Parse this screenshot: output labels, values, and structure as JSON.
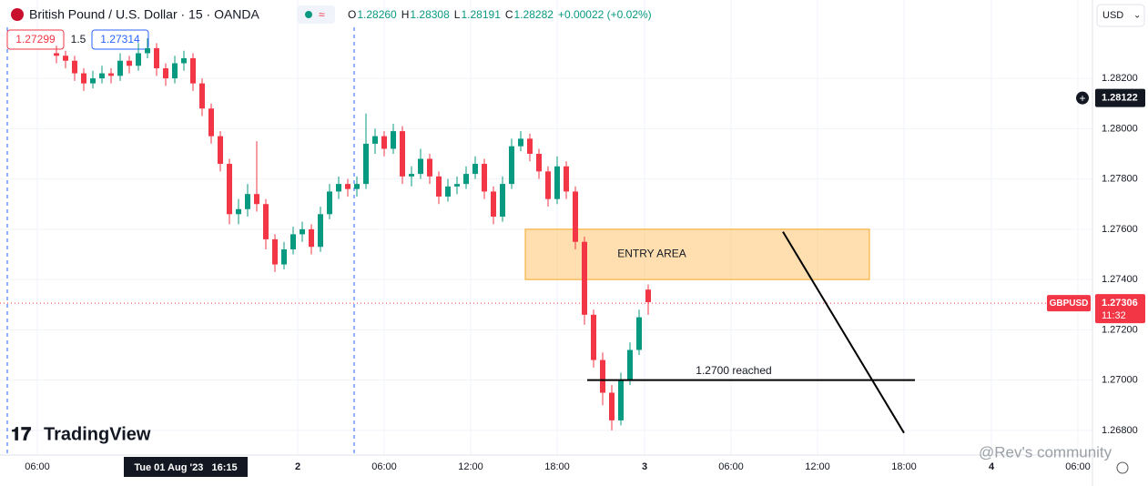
{
  "chart_data": {
    "type": "candlestick",
    "title": "British Pound / U.S. Dollar · 15 · OANDA",
    "legend": [
      {
        "label": "O",
        "value": "1.28260"
      },
      {
        "label": "H",
        "value": "1.28308"
      },
      {
        "label": "L",
        "value": "1.28191"
      },
      {
        "label": "C",
        "value": "1.28282"
      }
    ],
    "change": "+0.00022 (+0.02%)",
    "bid": "1.27299",
    "spread": "1.5",
    "ask": "1.27314",
    "currency": "USD",
    "symbol": "GBPUSD",
    "last_price": {
      "value": 1.27306,
      "label": "1.27306"
    },
    "countdown": "11:32",
    "crosshair_price": {
      "value": 1.28122,
      "label": "1.28122"
    },
    "crosshair_time": "Tue 01 Aug '23   16:15",
    "up_color": "#089981",
    "down_color": "#f23645",
    "ylim": [
      1.26702,
      1.28403
    ],
    "yticks": [
      {
        "value": 1.282,
        "label": "1.28200"
      },
      {
        "value": 1.28,
        "label": "1.28000"
      },
      {
        "value": 1.278,
        "label": "1.27800"
      },
      {
        "value": 1.276,
        "label": "1.27600"
      },
      {
        "value": 1.274,
        "label": "1.27400"
      },
      {
        "value": 1.272,
        "label": "1.27200"
      },
      {
        "value": 1.27,
        "label": "1.27000"
      },
      {
        "value": 1.268,
        "label": "1.26800"
      }
    ],
    "xlabels": [
      "06:00",
      "2",
      "06:00",
      "12:00",
      "18:00",
      "3",
      "06:00",
      "12:00",
      "18:00",
      "4",
      "06:00"
    ],
    "grid": true,
    "candles": [
      [
        1.283,
        1.2833,
        1.2826,
        1.2829
      ],
      [
        1.2829,
        1.2831,
        1.2824,
        1.2827
      ],
      [
        1.2827,
        1.2829,
        1.2819,
        1.2822
      ],
      [
        1.2822,
        1.2824,
        1.2815,
        1.2818
      ],
      [
        1.2818,
        1.2823,
        1.2816,
        1.282
      ],
      [
        1.282,
        1.2825,
        1.2818,
        1.2822
      ],
      [
        1.2822,
        1.2824,
        1.2818,
        1.2821
      ],
      [
        1.2821,
        1.283,
        1.2819,
        1.2827
      ],
      [
        1.2827,
        1.2829,
        1.2822,
        1.2825
      ],
      [
        1.2825,
        1.2834,
        1.2823,
        1.283
      ],
      [
        1.283,
        1.2836,
        1.2828,
        1.2832
      ],
      [
        1.2832,
        1.2834,
        1.2821,
        1.2824
      ],
      [
        1.2824,
        1.2826,
        1.2817,
        1.282
      ],
      [
        1.282,
        1.2829,
        1.2818,
        1.2826
      ],
      [
        1.2826,
        1.2831,
        1.2823,
        1.2828
      ],
      [
        1.2828,
        1.283,
        1.2815,
        1.2818
      ],
      [
        1.2818,
        1.282,
        1.2805,
        1.2808
      ],
      [
        1.2808,
        1.281,
        1.2794,
        1.2797
      ],
      [
        1.2797,
        1.2799,
        1.2783,
        1.2786
      ],
      [
        1.2786,
        1.2788,
        1.2762,
        1.2766
      ],
      [
        1.2766,
        1.2772,
        1.2762,
        1.2768
      ],
      [
        1.2768,
        1.2778,
        1.2765,
        1.2774
      ],
      [
        1.2774,
        1.2795,
        1.2767,
        1.277
      ],
      [
        1.277,
        1.2772,
        1.2752,
        1.2756
      ],
      [
        1.2756,
        1.2758,
        1.2743,
        1.2746
      ],
      [
        1.2746,
        1.2755,
        1.2744,
        1.2752
      ],
      [
        1.2752,
        1.2761,
        1.275,
        1.2758
      ],
      [
        1.2758,
        1.2763,
        1.2755,
        1.276
      ],
      [
        1.276,
        1.2762,
        1.275,
        1.2753
      ],
      [
        1.2753,
        1.2769,
        1.2751,
        1.2766
      ],
      [
        1.2766,
        1.2778,
        1.2764,
        1.2775
      ],
      [
        1.2775,
        1.2781,
        1.2772,
        1.2778
      ],
      [
        1.2778,
        1.278,
        1.2773,
        1.2776
      ],
      [
        1.2776,
        1.2781,
        1.2773,
        1.2778
      ],
      [
        1.2778,
        1.2806,
        1.2776,
        1.2794
      ],
      [
        1.2794,
        1.28,
        1.279,
        1.2797
      ],
      [
        1.2797,
        1.2799,
        1.2789,
        1.2792
      ],
      [
        1.2792,
        1.2802,
        1.279,
        1.2799
      ],
      [
        1.2799,
        1.2801,
        1.2778,
        1.2781
      ],
      [
        1.2781,
        1.2785,
        1.2777,
        1.2782
      ],
      [
        1.2782,
        1.2792,
        1.278,
        1.2788
      ],
      [
        1.2788,
        1.279,
        1.2778,
        1.2781
      ],
      [
        1.2781,
        1.2783,
        1.277,
        1.2773
      ],
      [
        1.2773,
        1.278,
        1.2771,
        1.2777
      ],
      [
        1.2777,
        1.2781,
        1.2774,
        1.2778
      ],
      [
        1.2778,
        1.2785,
        1.2776,
        1.2782
      ],
      [
        1.2782,
        1.2789,
        1.278,
        1.2786
      ],
      [
        1.2786,
        1.2788,
        1.2772,
        1.2775
      ],
      [
        1.2775,
        1.2777,
        1.2762,
        1.2765
      ],
      [
        1.2765,
        1.2781,
        1.2763,
        1.2778
      ],
      [
        1.2778,
        1.2796,
        1.2776,
        1.2793
      ],
      [
        1.2793,
        1.2799,
        1.2791,
        1.2796
      ],
      [
        1.2796,
        1.2798,
        1.2787,
        1.279
      ],
      [
        1.279,
        1.2792,
        1.278,
        1.2783
      ],
      [
        1.2783,
        1.2785,
        1.2769,
        1.2772
      ],
      [
        1.2772,
        1.2789,
        1.277,
        1.2785
      ],
      [
        1.2785,
        1.2787,
        1.2772,
        1.2775
      ],
      [
        1.2775,
        1.2777,
        1.2752,
        1.2755
      ],
      [
        1.2755,
        1.2757,
        1.2722,
        1.2726
      ],
      [
        1.2726,
        1.2728,
        1.2705,
        1.2708
      ],
      [
        1.2708,
        1.2711,
        1.269,
        1.2695
      ],
      [
        1.2695,
        1.2698,
        1.268,
        1.2684
      ],
      [
        1.2684,
        1.2703,
        1.2682,
        1.27
      ],
      [
        1.27,
        1.2715,
        1.2698,
        1.2712
      ],
      [
        1.2712,
        1.2728,
        1.271,
        1.2725
      ],
      [
        1.2736,
        1.2738,
        1.2726,
        1.2731
      ]
    ],
    "entry_area": {
      "label": "ENTRY AREA",
      "top": 1.276,
      "bottom": 1.274
    },
    "level_line": {
      "label": "1.2700 reached",
      "price": 1.27
    },
    "trend_line": [
      1.2759,
      1.2679
    ],
    "brand": "TradingView",
    "watermark": "@Rev's community"
  }
}
